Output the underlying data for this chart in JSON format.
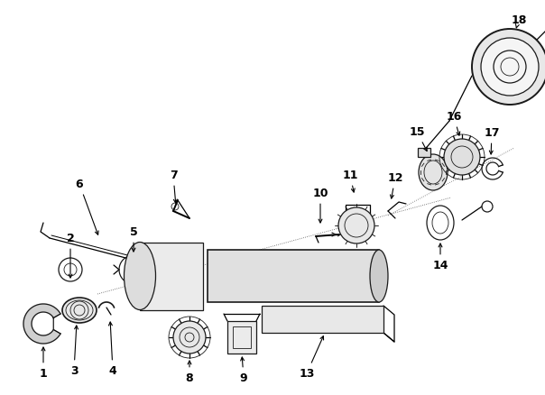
{
  "bg_color": "#ffffff",
  "line_color": "#1a1a1a",
  "fig_width": 6.04,
  "fig_height": 4.39,
  "dpi": 100,
  "lw": 0.9,
  "thin_lw": 0.6,
  "label_fs": 9.0
}
